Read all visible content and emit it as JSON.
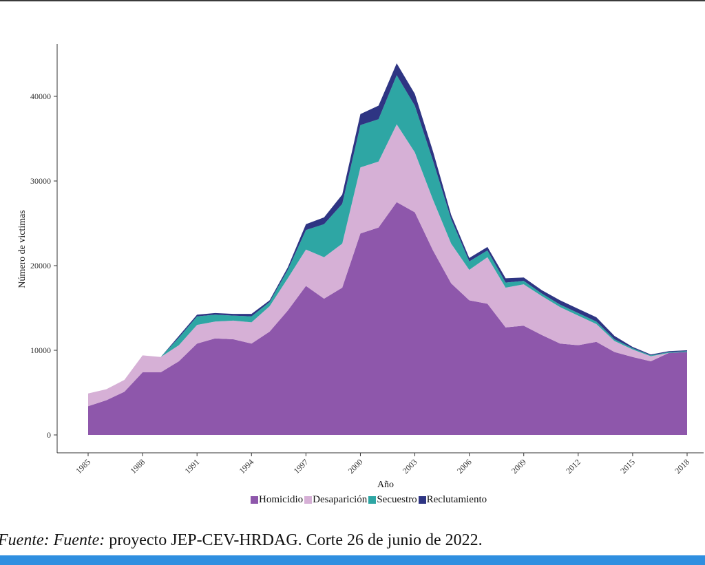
{
  "source": {
    "prefix": "Fuente: Fuente:",
    "text": " proyecto JEP-CEV-HRDAG. Corte 26 de junio de 2022."
  },
  "chart_data": {
    "type": "area",
    "stacked": true,
    "xlabel": "Año",
    "ylabel": "Número de victimas",
    "ylim": [
      0,
      45000
    ],
    "xlim": [
      1985,
      2018
    ],
    "x_ticks": [
      "1985",
      "1988",
      "1991",
      "1994",
      "1997",
      "2000",
      "2003",
      "2006",
      "2009",
      "2012",
      "2015",
      "2018"
    ],
    "y_ticks": [
      "0",
      "10000",
      "20000",
      "30000",
      "40000"
    ],
    "grid": false,
    "legend_position": "bottom",
    "x": [
      1985,
      1986,
      1987,
      1988,
      1989,
      1990,
      1991,
      1992,
      1993,
      1994,
      1995,
      1996,
      1997,
      1998,
      1999,
      2000,
      2001,
      2002,
      2003,
      2004,
      2005,
      2006,
      2007,
      2008,
      2009,
      2010,
      2011,
      2012,
      2013,
      2014,
      2015,
      2016,
      2017,
      2018
    ],
    "series": [
      {
        "name": "Homicidio",
        "color": "#8e57ab",
        "values": [
          3400,
          4100,
          5100,
          7400,
          7400,
          8700,
          10800,
          11400,
          11300,
          10800,
          12200,
          14700,
          17600,
          16100,
          17400,
          23800,
          24500,
          27500,
          26300,
          21800,
          17900,
          15900,
          15500,
          12700,
          12900,
          11800,
          10800,
          10600,
          11000,
          9800,
          9200,
          8700,
          9700,
          9800
        ]
      },
      {
        "name": "Desaparición",
        "color": "#d6b0d6",
        "values": [
          1500,
          1300,
          1400,
          2000,
          1800,
          1900,
          2200,
          2000,
          2200,
          2500,
          3000,
          3800,
          4300,
          4900,
          5200,
          7800,
          7800,
          9200,
          7100,
          6000,
          4700,
          3600,
          5500,
          4700,
          4900,
          4600,
          4300,
          3500,
          2100,
          1300,
          900,
          600,
          0,
          0
        ]
      },
      {
        "name": "Secuestro",
        "color": "#2ea6a4",
        "values": [
          0,
          0,
          0,
          0,
          0,
          900,
          1000,
          800,
          600,
          700,
          500,
          1000,
          2300,
          3900,
          4700,
          5000,
          5000,
          5800,
          5500,
          4600,
          2900,
          1000,
          800,
          600,
          400,
          300,
          300,
          300,
          300,
          200,
          150,
          100,
          100,
          100
        ]
      },
      {
        "name": "Reclutamiento",
        "color": "#2e3583",
        "values": [
          0,
          0,
          0,
          0,
          0,
          200,
          200,
          200,
          200,
          300,
          200,
          300,
          700,
          800,
          1100,
          1300,
          1600,
          1400,
          1400,
          1100,
          500,
          400,
          400,
          500,
          400,
          400,
          500,
          500,
          500,
          400,
          150,
          100,
          100,
          100
        ]
      }
    ]
  }
}
